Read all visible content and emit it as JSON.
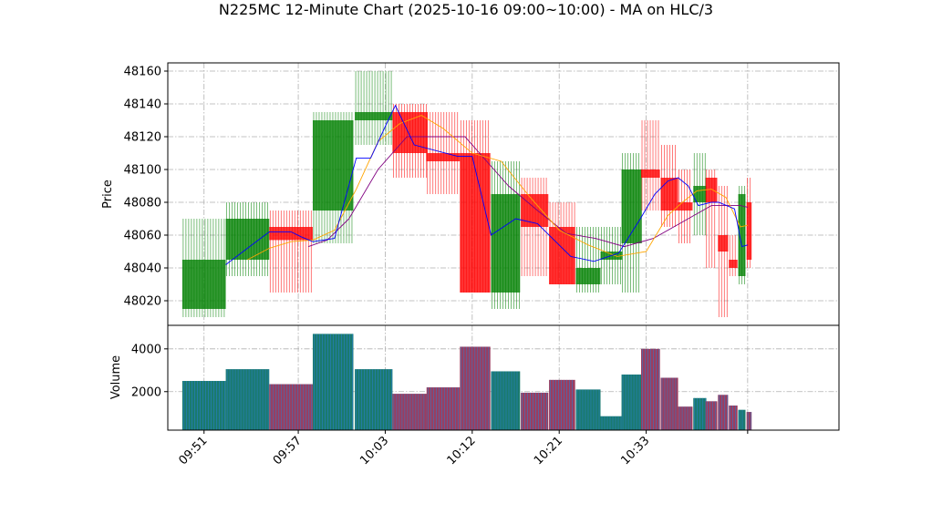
{
  "chart_data": {
    "type": "candlestick",
    "title": "N225MC 12-Minute Chart (2025-10-16 09:00~10:00) - MA on HLC/3",
    "price_panel": {
      "ylabel": "Price",
      "ylim": [
        48005,
        48165
      ],
      "yticks": [
        48020,
        48040,
        48060,
        48080,
        48100,
        48120,
        48140,
        48160
      ]
    },
    "volume_panel": {
      "ylabel": "Volume",
      "ylim": [
        200,
        5100
      ],
      "yticks": [
        2000,
        4000
      ]
    },
    "xlim": [
      -0.5,
      45.8
    ],
    "xticks": [
      {
        "pos": 2,
        "label": "09:51"
      },
      {
        "pos": 8.5,
        "label": "09:57"
      },
      {
        "pos": 14.5,
        "label": "10:03"
      },
      {
        "pos": 20.5,
        "label": "10:12"
      },
      {
        "pos": 26.5,
        "label": "10:21"
      },
      {
        "pos": 32.5,
        "label": "10:33"
      },
      {
        "pos": 39.5,
        "label": ""
      }
    ],
    "candles": [
      {
        "x": 2,
        "w": 3,
        "open": 48015,
        "high": 48070,
        "low": 48010,
        "close": 48045,
        "volume": 2500
      },
      {
        "x": 5,
        "w": 3,
        "open": 48045,
        "high": 48080,
        "low": 48035,
        "close": 48070,
        "volume": 3050
      },
      {
        "x": 8,
        "w": 3,
        "open": 48065,
        "high": 48075,
        "low": 48025,
        "close": 48057,
        "volume": 2350
      },
      {
        "x": 10.9,
        "w": 2.8,
        "open": 48075,
        "high": 48135,
        "low": 48055,
        "close": 48130,
        "volume": 4700
      },
      {
        "x": 13.7,
        "w": 2.6,
        "open": 48130,
        "high": 48160,
        "low": 48115,
        "close": 48135,
        "volume": 3050
      },
      {
        "x": 16.2,
        "w": 2.4,
        "open": 48135,
        "high": 48140,
        "low": 48095,
        "close": 48110,
        "volume": 1900
      },
      {
        "x": 18.5,
        "w": 2.3,
        "open": 48110,
        "high": 48135,
        "low": 48085,
        "close": 48105,
        "volume": 2200
      },
      {
        "x": 20.7,
        "w": 2.1,
        "open": 48110,
        "high": 48130,
        "low": 48025,
        "close": 48025,
        "volume": 4100
      },
      {
        "x": 22.8,
        "w": 2.0,
        "open": 48025,
        "high": 48105,
        "low": 48015,
        "close": 48085,
        "volume": 2950
      },
      {
        "x": 24.8,
        "w": 1.9,
        "open": 48085,
        "high": 48095,
        "low": 48035,
        "close": 48065,
        "volume": 1950
      },
      {
        "x": 26.7,
        "w": 1.8,
        "open": 48065,
        "high": 48080,
        "low": 48030,
        "close": 48030,
        "volume": 2550
      },
      {
        "x": 28.5,
        "w": 1.7,
        "open": 48030,
        "high": 48065,
        "low": 48025,
        "close": 48040,
        "volume": 2100
      },
      {
        "x": 30.1,
        "w": 1.5,
        "open": 48045,
        "high": 48065,
        "low": 48030,
        "close": 48050,
        "volume": 850
      },
      {
        "x": 31.5,
        "w": 1.4,
        "open": 48055,
        "high": 48110,
        "low": 48025,
        "close": 48100,
        "volume": 2800
      },
      {
        "x": 32.8,
        "w": 1.3,
        "open": 48100,
        "high": 48130,
        "low": 48075,
        "close": 48095,
        "volume": 4000
      },
      {
        "x": 34.1,
        "w": 1.2,
        "open": 48095,
        "high": 48115,
        "low": 48065,
        "close": 48075,
        "volume": 2650
      },
      {
        "x": 35.2,
        "w": 1.0,
        "open": 48080,
        "high": 48100,
        "low": 48055,
        "close": 48075,
        "volume": 1300
      },
      {
        "x": 36.2,
        "w": 0.9,
        "open": 48080,
        "high": 48110,
        "low": 48060,
        "close": 48090,
        "volume": 1700
      },
      {
        "x": 37.0,
        "w": 0.8,
        "open": 48095,
        "high": 48100,
        "low": 48040,
        "close": 48080,
        "volume": 1550
      },
      {
        "x": 37.8,
        "w": 0.7,
        "open": 48060,
        "high": 48090,
        "low": 48010,
        "close": 48050,
        "volume": 1850
      },
      {
        "x": 38.5,
        "w": 0.6,
        "open": 48045,
        "high": 48060,
        "low": 48035,
        "close": 48040,
        "volume": 1350
      },
      {
        "x": 39.1,
        "w": 0.5,
        "open": 48035,
        "high": 48090,
        "low": 48030,
        "close": 48085,
        "volume": 1150
      },
      {
        "x": 39.6,
        "w": 0.35,
        "open": 48080,
        "high": 48095,
        "low": 48040,
        "close": 48045,
        "volume": 1050
      }
    ],
    "ma_short": {
      "color": "#0000ff",
      "x": [
        3.5,
        5,
        6.5,
        8,
        8.7,
        9.5,
        11,
        12.5,
        13.5,
        14.7,
        15.2,
        16.5,
        19.5,
        20.5,
        21.8,
        23.5,
        25,
        27.3,
        28.9,
        30.6,
        32.1,
        33.1,
        34.0,
        34.7,
        35.4,
        36.1,
        37.0,
        37.5,
        38.6,
        39.1,
        39.5
      ],
      "y": [
        48042,
        48052,
        48062,
        48062,
        48059,
        48056,
        48058,
        48107,
        48107,
        48130,
        48139,
        48115,
        48108,
        48108,
        48060,
        48070,
        48067,
        48047,
        48044,
        48049,
        48070,
        48085,
        48093,
        48095,
        48090,
        48078,
        48080,
        48080,
        48076,
        48053,
        48054
      ]
    },
    "ma_mid": {
      "color": "#ffa500",
      "x": [
        5,
        6.5,
        8,
        9.5,
        11,
        12.5,
        14,
        15.5,
        17,
        18.5,
        20.5,
        22.5,
        24.5,
        26.5,
        28.5,
        30.5,
        32.5,
        34,
        35,
        36,
        37,
        38,
        39,
        39.5
      ],
      "y": [
        48045,
        48052,
        48056,
        48057,
        48063,
        48088,
        48117,
        48128,
        48133,
        48125,
        48110,
        48105,
        48083,
        48063,
        48054,
        48047,
        48050,
        48072,
        48080,
        48087,
        48088,
        48083,
        48065,
        48066
      ]
    },
    "ma_long": {
      "color": "#800080",
      "x": [
        9.2,
        10.5,
        12,
        14,
        16,
        18,
        20,
        21.5,
        23,
        25,
        27,
        29,
        31,
        33,
        35,
        37,
        39,
        39.5
      ],
      "y": [
        48053,
        48057,
        48070,
        48100,
        48120,
        48120,
        48120,
        48105,
        48090,
        48075,
        48061,
        48058,
        48053,
        48058,
        48068,
        48078,
        48078,
        48077
      ]
    }
  }
}
